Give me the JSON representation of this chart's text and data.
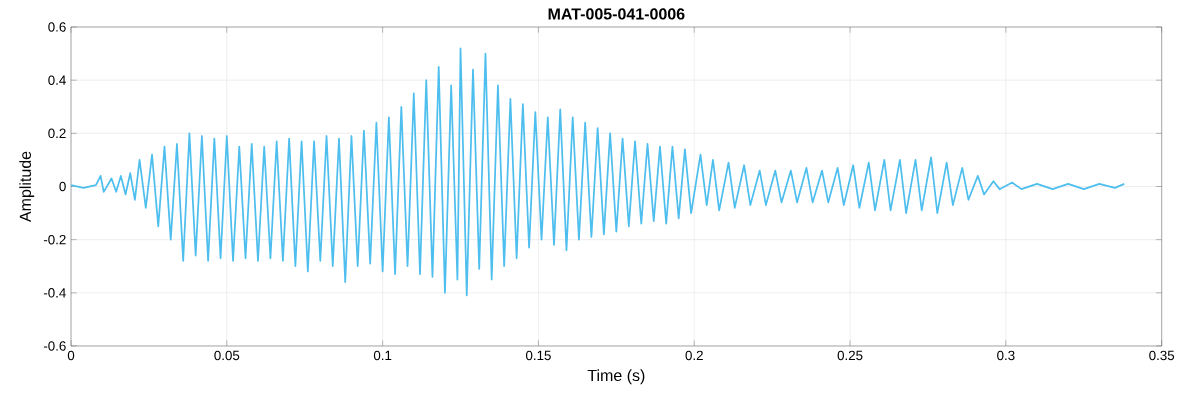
{
  "chart_data": {
    "type": "line",
    "title": "MAT-005-041-0006",
    "xlabel": "Time (s)",
    "ylabel": "Amplitude",
    "xlim": [
      0,
      0.35
    ],
    "ylim": [
      -0.6,
      0.6
    ],
    "xticks": [
      0,
      0.05,
      0.1,
      0.15,
      0.2,
      0.25,
      0.3,
      0.35
    ],
    "yticks": [
      -0.6,
      -0.4,
      -0.2,
      0,
      0.2,
      0.4,
      0.6
    ],
    "grid": true,
    "series": [
      {
        "color": "#4dbeee",
        "x": [
          0,
          0.004,
          0.008,
          0.0095,
          0.0105,
          0.013,
          0.0145,
          0.016,
          0.0175,
          0.019,
          0.0205,
          0.022,
          0.024,
          0.026,
          0.028,
          0.03,
          0.032,
          0.034,
          0.036,
          0.038,
          0.04,
          0.042,
          0.044,
          0.046,
          0.048,
          0.05,
          0.052,
          0.054,
          0.056,
          0.058,
          0.06,
          0.062,
          0.064,
          0.066,
          0.068,
          0.07,
          0.072,
          0.074,
          0.076,
          0.078,
          0.08,
          0.082,
          0.084,
          0.086,
          0.088,
          0.09,
          0.092,
          0.094,
          0.096,
          0.098,
          0.1,
          0.102,
          0.104,
          0.106,
          0.108,
          0.11,
          0.112,
          0.114,
          0.116,
          0.118,
          0.12,
          0.122,
          0.124,
          0.125,
          0.127,
          0.129,
          0.131,
          0.133,
          0.135,
          0.137,
          0.139,
          0.141,
          0.143,
          0.145,
          0.147,
          0.149,
          0.151,
          0.153,
          0.155,
          0.157,
          0.159,
          0.161,
          0.163,
          0.165,
          0.167,
          0.169,
          0.171,
          0.173,
          0.175,
          0.177,
          0.179,
          0.181,
          0.183,
          0.185,
          0.187,
          0.189,
          0.191,
          0.193,
          0.195,
          0.197,
          0.199,
          0.202,
          0.204,
          0.206,
          0.208,
          0.211,
          0.213,
          0.216,
          0.218,
          0.221,
          0.223,
          0.226,
          0.228,
          0.231,
          0.233,
          0.236,
          0.238,
          0.241,
          0.243,
          0.246,
          0.248,
          0.251,
          0.253,
          0.256,
          0.258,
          0.261,
          0.263,
          0.266,
          0.268,
          0.271,
          0.273,
          0.276,
          0.278,
          0.281,
          0.283,
          0.286,
          0.288,
          0.291,
          0.293,
          0.296,
          0.298,
          0.302,
          0.305,
          0.31,
          0.315,
          0.32,
          0.325,
          0.33,
          0.335,
          0.338
        ],
        "values": [
          0.005,
          -0.005,
          0.005,
          0.04,
          -0.02,
          0.03,
          -0.02,
          0.04,
          -0.03,
          0.05,
          -0.05,
          0.1,
          -0.08,
          0.12,
          -0.15,
          0.15,
          -0.2,
          0.16,
          -0.28,
          0.2,
          -0.26,
          0.19,
          -0.28,
          0.18,
          -0.27,
          0.19,
          -0.28,
          0.15,
          -0.27,
          0.16,
          -0.28,
          0.15,
          -0.27,
          0.17,
          -0.28,
          0.18,
          -0.3,
          0.17,
          -0.32,
          0.17,
          -0.28,
          0.19,
          -0.3,
          0.18,
          -0.36,
          0.19,
          -0.3,
          0.21,
          -0.29,
          0.24,
          -0.32,
          0.26,
          -0.33,
          0.3,
          -0.3,
          0.35,
          -0.33,
          0.4,
          -0.34,
          0.45,
          -0.4,
          0.38,
          -0.35,
          0.52,
          -0.41,
          0.44,
          -0.31,
          0.5,
          -0.35,
          0.38,
          -0.3,
          0.33,
          -0.27,
          0.31,
          -0.23,
          0.28,
          -0.2,
          0.26,
          -0.22,
          0.29,
          -0.24,
          0.26,
          -0.2,
          0.24,
          -0.19,
          0.22,
          -0.18,
          0.2,
          -0.17,
          0.18,
          -0.15,
          0.17,
          -0.14,
          0.16,
          -0.13,
          0.15,
          -0.14,
          0.15,
          -0.12,
          0.14,
          -0.1,
          0.12,
          -0.07,
          0.1,
          -0.09,
          0.09,
          -0.08,
          0.08,
          -0.07,
          0.06,
          -0.07,
          0.06,
          -0.06,
          0.06,
          -0.06,
          0.07,
          -0.06,
          0.06,
          -0.06,
          0.07,
          -0.07,
          0.08,
          -0.08,
          0.09,
          -0.09,
          0.1,
          -0.09,
          0.1,
          -0.1,
          0.1,
          -0.09,
          0.11,
          -0.1,
          0.09,
          -0.07,
          0.07,
          -0.05,
          0.04,
          -0.03,
          0.02,
          -0.01,
          0.015,
          -0.01,
          0.01,
          -0.01,
          0.01,
          -0.01,
          0.01,
          -0.005,
          0.01
        ]
      }
    ]
  }
}
